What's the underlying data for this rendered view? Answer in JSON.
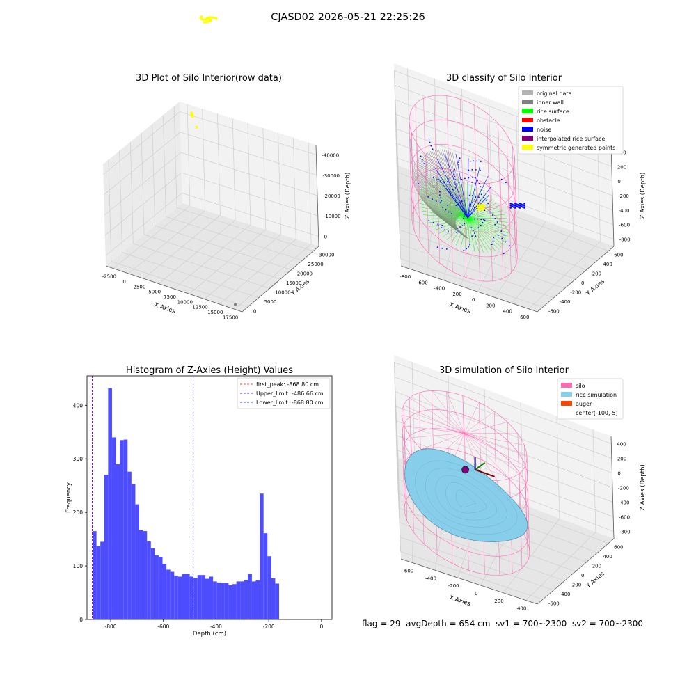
{
  "figure": {
    "suptitle": "CJASD02 2026-05-21 22:25:26",
    "footer": "flag = 29  avgDepth = 654 cm  sv1 = 700~2300  sv2 = 700~2300"
  },
  "colors": {
    "yellow": "#ffff00",
    "gray": "#808080",
    "lightgray": "#b3b3b3",
    "green": "#00ff00",
    "blue": "#0000ff",
    "red": "#ff0000",
    "purple": "#800080",
    "pink": "#ff69b4",
    "skyblue": "#87ceeb",
    "orange": "#ff4500",
    "histblue": "#4d4dff"
  },
  "chart_data": [
    {
      "type": "scatter",
      "title": "3D Plot of Silo Interior(row data)",
      "xlabel": "X Axies",
      "ylabel": "Y Axies",
      "zlabel": "Z Axies (Depth)",
      "x_ticks": [
        "-2500",
        "0",
        "2500",
        "5000",
        "7500",
        "10000",
        "12500",
        "15000",
        "17500"
      ],
      "y_ticks": [
        "0",
        "5000",
        "10000",
        "15000",
        "20000",
        "25000",
        "30000"
      ],
      "z_ticks": [
        "0",
        "-10000",
        "-20000",
        "-30000",
        "-40000"
      ],
      "xlim": [
        -3000,
        19000
      ],
      "ylim": [
        -1000,
        31000
      ],
      "zlim": [
        -46000,
        2000
      ],
      "series": [
        {
          "color": "yellow",
          "points": [
            [
              -500,
              300,
              -300
            ],
            [
              -400,
              500,
              -600
            ],
            [
              -700,
              0,
              -200
            ],
            [
              -300,
              600,
              -900
            ],
            [
              -600,
              200,
              -500
            ],
            [
              700,
              1600,
              -4000
            ]
          ]
        },
        {
          "color": "gray",
          "points": [
            [
              17500,
              30000,
              -45000
            ]
          ]
        }
      ]
    },
    {
      "type": "scatter",
      "title": "3D classify of Silo Interior",
      "xlabel": "X Axies",
      "ylabel": "Y Axies",
      "zlabel": "Z Axies (Depth)",
      "x_ticks": [
        "-800",
        "-600",
        "-400",
        "-200",
        "0",
        "200",
        "400",
        "600"
      ],
      "y_ticks": [
        "-600",
        "-400",
        "-200",
        "0",
        "200",
        "400",
        "600"
      ],
      "z_ticks": [
        "-800",
        "-600",
        "-400",
        "-200",
        "0",
        "200",
        "400"
      ],
      "xlim": [
        -800,
        650
      ],
      "ylim": [
        -700,
        700
      ],
      "zlim": [
        -900,
        450
      ],
      "legend": [
        {
          "label": "original data",
          "color": "lightgray"
        },
        {
          "label": "inner wall",
          "color": "gray"
        },
        {
          "label": "rice surface",
          "color": "green"
        },
        {
          "label": "obstacle",
          "color": "red"
        },
        {
          "label": "noise",
          "color": "blue"
        },
        {
          "label": "interpolated rice surface",
          "color": "purple"
        },
        {
          "label": "symmetric generated points",
          "color": "yellow"
        }
      ],
      "silo": {
        "center": [
          -100,
          -5
        ],
        "radius": 560,
        "z_bottom": -900,
        "z_top": 400
      }
    },
    {
      "type": "bar",
      "title": "Histogram of Z-Axies (Height) Values",
      "xlabel": "Depth (cm)",
      "ylabel": "Frequency",
      "xlim": [
        -890,
        40
      ],
      "ylim": [
        0,
        455
      ],
      "x_ticks": [
        -800,
        -600,
        -400,
        -200,
        0
      ],
      "y_ticks": [
        0,
        100,
        200,
        300,
        400
      ],
      "bin_start": -868.8,
      "bin_width": 14.75,
      "values": [
        165,
        137,
        145,
        270,
        432,
        340,
        290,
        335,
        336,
        276,
        253,
        215,
        167,
        165,
        146,
        133,
        120,
        117,
        104,
        93,
        89,
        82,
        80,
        85,
        85,
        80,
        77,
        83,
        83,
        76,
        80,
        71,
        69,
        68,
        68,
        64,
        66,
        71,
        71,
        74,
        85,
        71,
        73,
        235,
        161,
        118,
        77,
        67
      ],
      "lines": [
        {
          "label": "first_peak: -868.80 cm",
          "x": -868.8,
          "color": "red"
        },
        {
          "label": "Upper_limit: -486.66 cm",
          "x": -486.66,
          "color": "blue"
        },
        {
          "label": "Lower_limit: -868.80 cm",
          "x": -868.8,
          "color": "blue"
        }
      ]
    },
    {
      "type": "area",
      "title": "3D simulation of Silo Interior",
      "xlabel": "X Axies",
      "ylabel": "Y Axies",
      "zlabel": "Z Axies (Depth)",
      "x_ticks": [
        "-600",
        "-400",
        "-200",
        "0",
        "200",
        "400"
      ],
      "y_ticks": [
        "-600",
        "-400",
        "-200",
        "0",
        "200",
        "400",
        "600"
      ],
      "z_ticks": [
        "-800",
        "-600",
        "-400",
        "-200",
        "0",
        "200",
        "400"
      ],
      "xlim": [
        -700,
        500
      ],
      "ylim": [
        -700,
        700
      ],
      "zlim": [
        -900,
        450
      ],
      "legend": [
        {
          "label": "silo",
          "color": "pink"
        },
        {
          "label": "rice simulation",
          "color": "skyblue"
        },
        {
          "label": "auger",
          "color": "orange"
        },
        {
          "label": "center(-100,-5)",
          "color": ""
        }
      ],
      "silo": {
        "center": [
          -100,
          -5
        ],
        "radius": 550,
        "z_bottom": -900,
        "z_top": 350
      },
      "rice_surface_depth": -500,
      "auger_height": -100
    }
  ]
}
